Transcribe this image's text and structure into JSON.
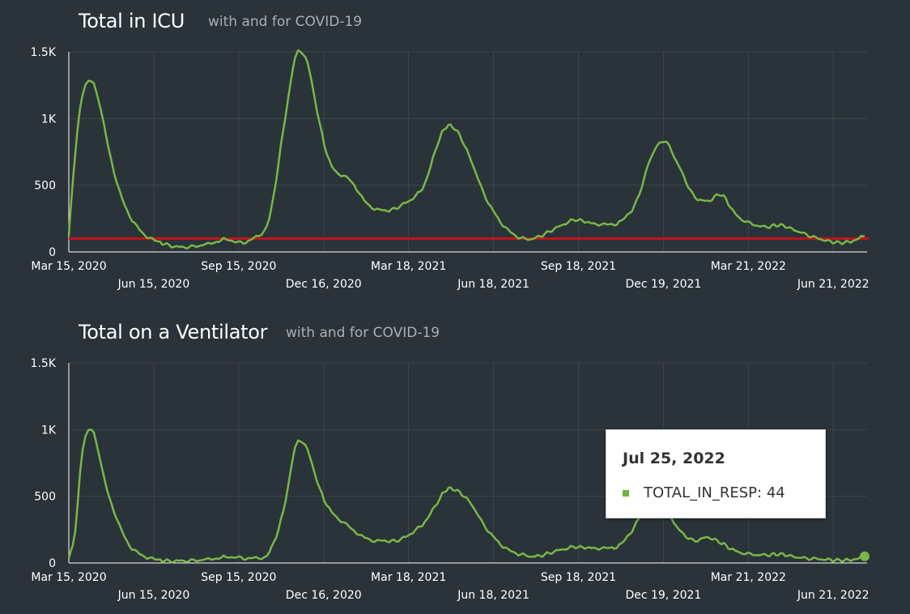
{
  "charts": {
    "icu": {
      "title": "Total in ICU",
      "subtitle": "with and for COVID-19"
    },
    "vent": {
      "title": "Total on a Ventilator",
      "subtitle": "with and for COVID-19"
    }
  },
  "tooltip": {
    "date": "Jul 25, 2022",
    "series_label": "TOTAL_IN_RESP: 44"
  },
  "colors": {
    "background": "#2a3339",
    "grid": "#3c464c",
    "series": "#7ab648",
    "threshold": "#c0141a",
    "axis_text": "#ffffff"
  },
  "chart_data": [
    {
      "type": "line",
      "title": "Total in ICU",
      "subtitle": "with and for COVID-19",
      "ylim": [
        0,
        1500
      ],
      "yticks": [
        "0",
        "500",
        "1K",
        "1.5K"
      ],
      "x_tick_labels": [
        "Mar 15, 2020",
        "Jun 15, 2020",
        "Sep 15, 2020",
        "Dec 16, 2020",
        "Mar 18, 2021",
        "Jun 18, 2021",
        "Sep 18, 2021",
        "Dec 19, 2021",
        "Mar 21, 2022",
        "Jun 21, 2022"
      ],
      "grid": true,
      "threshold": 100,
      "x": [
        "2020-03-15",
        "2020-03-22",
        "2020-03-30",
        "2020-04-08",
        "2020-04-14",
        "2020-04-22",
        "2020-05-06",
        "2020-05-20",
        "2020-06-05",
        "2020-06-22",
        "2020-07-15",
        "2020-08-10",
        "2020-09-01",
        "2020-09-15",
        "2020-10-01",
        "2020-10-18",
        "2020-11-02",
        "2020-11-15",
        "2020-11-24",
        "2020-12-01",
        "2020-12-12",
        "2020-12-25",
        "2021-01-15",
        "2021-02-01",
        "2021-02-20",
        "2021-03-10",
        "2021-04-02",
        "2021-04-18",
        "2021-04-28",
        "2021-05-10",
        "2021-05-25",
        "2021-06-10",
        "2021-07-01",
        "2021-07-20",
        "2021-08-05",
        "2021-08-25",
        "2021-09-15",
        "2021-10-05",
        "2021-11-01",
        "2021-11-20",
        "2021-12-05",
        "2021-12-20",
        "2022-01-05",
        "2022-01-20",
        "2022-02-05",
        "2022-02-20",
        "2022-03-10",
        "2022-04-05",
        "2022-04-25",
        "2022-05-15",
        "2022-06-05",
        "2022-06-25",
        "2022-07-10",
        "2022-07-25"
      ],
      "series": [
        {
          "values": [
            120,
            750,
            1180,
            1290,
            1200,
            950,
            520,
            270,
            130,
            70,
            35,
            55,
            95,
            70,
            100,
            250,
            900,
            1450,
            1480,
            1350,
            950,
            640,
            530,
            360,
            310,
            350,
            480,
            800,
            940,
            900,
            680,
            400,
            180,
            100,
            110,
            180,
            240,
            210,
            220,
            380,
            700,
            830,
            640,
            430,
            380,
            430,
            260,
            190,
            200,
            150,
            100,
            70,
            80,
            120
          ]
        }
      ]
    },
    {
      "type": "line",
      "title": "Total on a Ventilator",
      "subtitle": "with and for COVID-19",
      "ylim": [
        0,
        1500
      ],
      "yticks": [
        "0",
        "500",
        "1K",
        "1.5K"
      ],
      "x_tick_labels": [
        "Mar 15, 2020",
        "Jun 15, 2020",
        "Sep 15, 2020",
        "Dec 16, 2020",
        "Mar 18, 2021",
        "Jun 18, 2021",
        "Sep 18, 2021",
        "Dec 19, 2021",
        "Mar 21, 2022",
        "Jun 21, 2022"
      ],
      "grid": true,
      "x": [
        "2020-03-15",
        "2020-03-22",
        "2020-03-30",
        "2020-04-08",
        "2020-04-14",
        "2020-04-22",
        "2020-05-06",
        "2020-05-20",
        "2020-06-05",
        "2020-06-22",
        "2020-07-15",
        "2020-08-10",
        "2020-09-01",
        "2020-09-15",
        "2020-10-01",
        "2020-10-18",
        "2020-11-02",
        "2020-11-15",
        "2020-11-24",
        "2020-12-01",
        "2020-12-12",
        "2020-12-25",
        "2021-01-15",
        "2021-02-01",
        "2021-02-20",
        "2021-03-10",
        "2021-04-02",
        "2021-04-18",
        "2021-04-28",
        "2021-05-10",
        "2021-05-25",
        "2021-06-10",
        "2021-07-01",
        "2021-07-20",
        "2021-08-05",
        "2021-08-25",
        "2021-09-15",
        "2021-10-05",
        "2021-11-01",
        "2021-11-20",
        "2021-12-05",
        "2021-12-20",
        "2022-01-05",
        "2022-01-20",
        "2022-02-05",
        "2022-02-20",
        "2022-03-10",
        "2022-04-05",
        "2022-04-25",
        "2022-05-15",
        "2022-06-05",
        "2022-06-25",
        "2022-07-10",
        "2022-07-25"
      ],
      "series": [
        {
          "name": "TOTAL_IN_RESP",
          "values": [
            30,
            250,
            850,
            1010,
            900,
            640,
            330,
            130,
            50,
            20,
            15,
            25,
            45,
            40,
            35,
            80,
            380,
            860,
            900,
            800,
            550,
            380,
            260,
            180,
            165,
            180,
            290,
            450,
            550,
            540,
            440,
            260,
            110,
            60,
            50,
            90,
            120,
            110,
            130,
            300,
            500,
            420,
            250,
            170,
            190,
            150,
            80,
            60,
            65,
            40,
            30,
            20,
            25,
            44
          ]
        }
      ]
    }
  ]
}
